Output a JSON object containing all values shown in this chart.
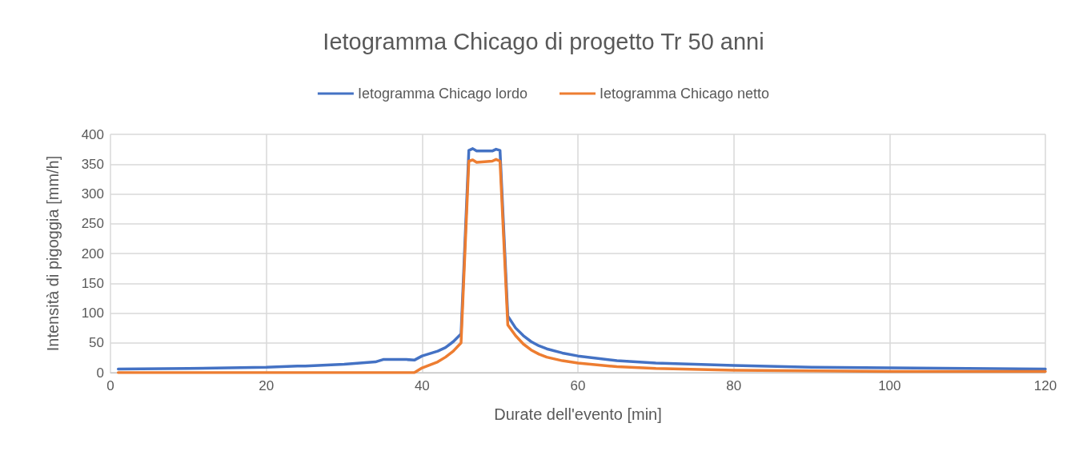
{
  "chart_data": {
    "type": "line",
    "title": "Ietogramma Chicago di progetto Tr 50 anni",
    "xlabel": "Durate dell'evento [min]",
    "ylabel": "Intensità di pigoggia [mm/h]",
    "xlim": [
      0,
      120
    ],
    "xticks": [
      0,
      20,
      40,
      60,
      80,
      100,
      120
    ],
    "ylim": [
      0,
      400
    ],
    "yticks": [
      0,
      50,
      100,
      150,
      200,
      250,
      300,
      350,
      400
    ],
    "grid": true,
    "legend": "top",
    "marker": "none",
    "line_style": "solid",
    "series": [
      {
        "name": "Ietogramma Chicago lordo",
        "color": "#4472c4",
        "x": [
          1,
          10,
          20,
          24,
          25,
          30,
          34,
          35,
          38,
          39,
          40,
          41,
          42,
          43,
          44,
          45,
          46,
          46.5,
          47,
          48,
          49,
          49.5,
          50,
          51,
          52,
          53,
          54,
          55,
          56,
          58,
          60,
          65,
          70,
          80,
          90,
          100,
          110,
          120
        ],
        "values": [
          6,
          7,
          9,
          11,
          11,
          14,
          18,
          22,
          22,
          21,
          28,
          32,
          36,
          42,
          52,
          65,
          373,
          376,
          372,
          372,
          372,
          375,
          373,
          95,
          75,
          62,
          52,
          45,
          40,
          33,
          28,
          20,
          16,
          12,
          9,
          8,
          7,
          6
        ]
      },
      {
        "name": "Ietogramma Chicago netto",
        "color": "#ed7d31",
        "x": [
          1,
          39,
          40,
          41,
          42,
          43,
          44,
          45,
          46,
          46.5,
          47,
          48,
          49,
          49.5,
          50,
          51,
          52,
          53,
          54,
          55,
          56,
          58,
          60,
          65,
          70,
          80,
          90,
          100,
          110,
          120
        ],
        "values": [
          0,
          0,
          8,
          13,
          18,
          26,
          36,
          50,
          355,
          357,
          353,
          354,
          355,
          358,
          355,
          80,
          62,
          48,
          38,
          31,
          26,
          20,
          16,
          10,
          7,
          4,
          3,
          2,
          2,
          2
        ]
      }
    ]
  }
}
